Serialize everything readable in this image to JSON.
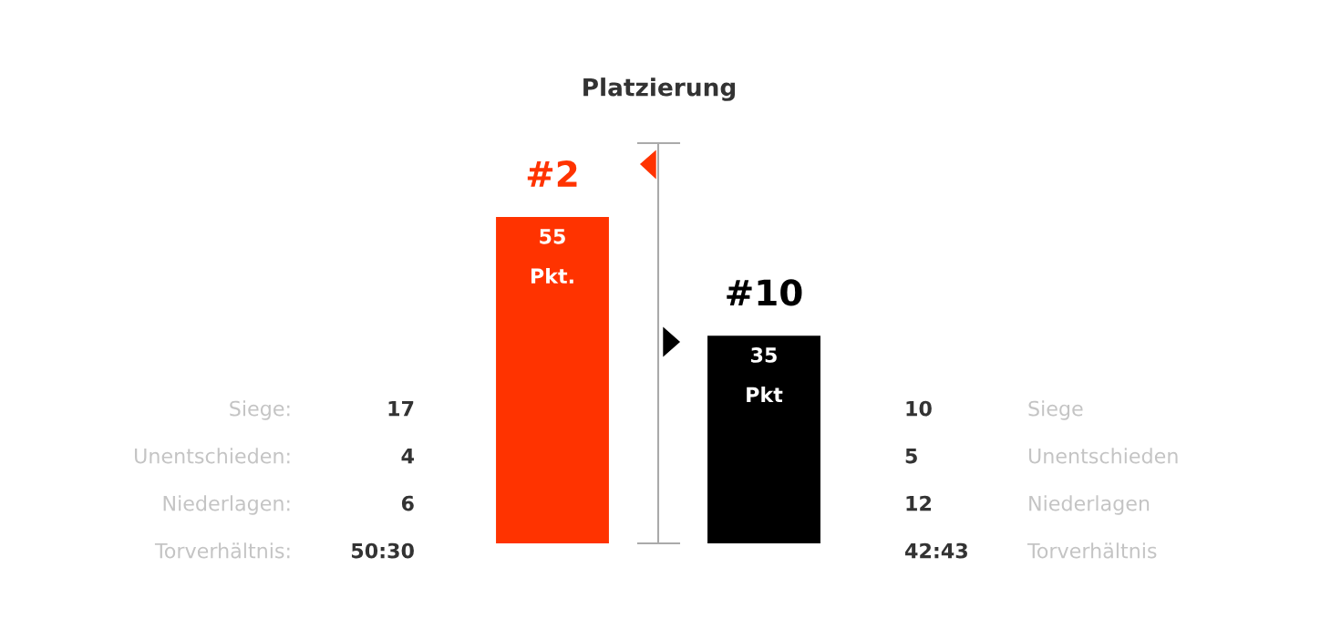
{
  "chart_data": [
    {
      "type": "other",
      "annotations": [
        "Siege:",
        "17",
        "Unentschieden:",
        "4",
        "Niederlagen:",
        "6",
        "Torverhältnis:",
        "50:30"
      ]
    },
    {
      "type": "bar",
      "title": "Platzierung",
      "categories": [
        null,
        null
      ],
      "values": [
        55,
        35
      ],
      "colors": [
        "#ff3300",
        "#000000"
      ],
      "value_labels": [
        "55\nPkt.",
        "35\nPkt"
      ],
      "annotations": [
        "#2",
        "#10"
      ]
    },
    {
      "type": "other",
      "annotations": [
        "10",
        "Siege",
        "5",
        "Unentschieden",
        "12",
        "Niederlagen",
        "42:43",
        "Torverhältnis"
      ]
    }
  ]
}
